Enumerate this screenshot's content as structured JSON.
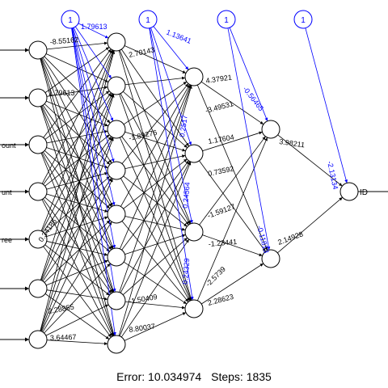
{
  "network": {
    "input_labels": [
      "",
      "",
      "ount",
      "unt",
      "ree",
      "",
      ""
    ],
    "bias_label": "1",
    "output_label": "ID",
    "visible_weight_labels": {
      "input_to_h1": [
        "-8.55162",
        "1.79613",
        "0.34186",
        "2.28855",
        "3.64467"
      ],
      "bias_to_h1": [
        "1.79613"
      ],
      "h1_to_h2": [
        "2.70143",
        "-1.89276",
        "-1.50409",
        "8.80037"
      ],
      "bias_to_h2": [
        "1.13641",
        "0.2517",
        "0.24564",
        "0.24329"
      ],
      "h2_to_h3": [
        "4.37921",
        "-3.49531",
        "1.17604",
        "0.73592",
        "-1.59127",
        "-1.23441",
        "-2.5739",
        "2.28623"
      ],
      "bias_to_h3": [
        "-0.56465",
        "-0.11813"
      ],
      "h3_to_out": [
        "3.98211",
        "2.14928"
      ],
      "bias_to_out": [
        "-2.13134"
      ]
    }
  },
  "footer": {
    "error_label": "Error: 10.034974",
    "steps_label": "Steps: 1835"
  },
  "colors": {
    "weight_line": "#000000",
    "bias_line": "#0000ff",
    "node_fill": "#ffffff"
  }
}
